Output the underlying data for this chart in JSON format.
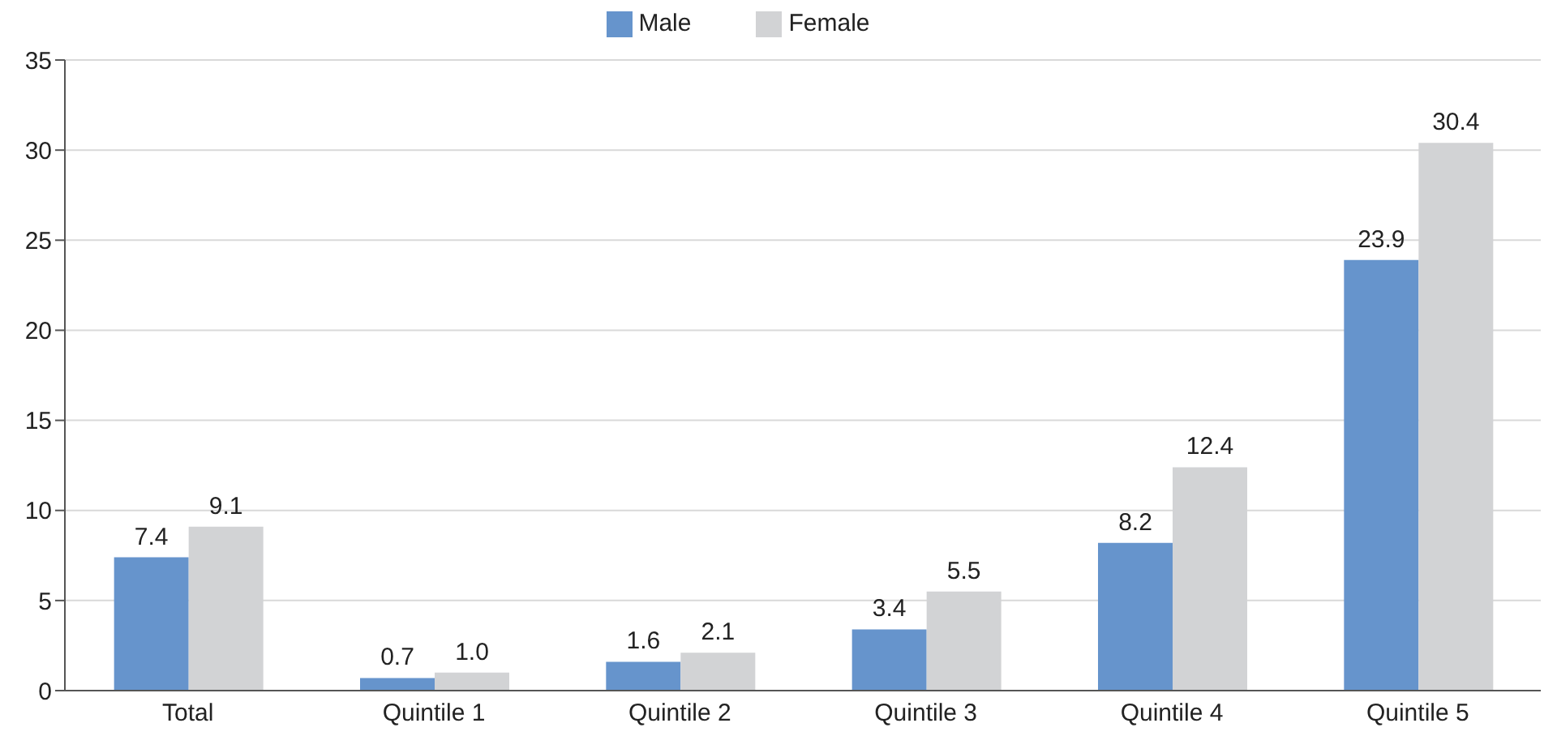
{
  "chart_data": {
    "type": "bar",
    "categories": [
      "Total",
      "Quintile 1",
      "Quintile 2",
      "Quintile 3",
      "Quintile 4",
      "Quintile 5"
    ],
    "series": [
      {
        "name": "Male",
        "color": "#6694cc",
        "values": [
          7.4,
          0.7,
          1.6,
          3.4,
          8.2,
          23.9
        ],
        "value_labels": [
          "7.4",
          "0.7",
          "1.6",
          "3.4",
          "8.2",
          "23.9"
        ]
      },
      {
        "name": "Female",
        "color": "#d2d3d5",
        "values": [
          9.1,
          1.0,
          2.1,
          5.5,
          12.4,
          30.4
        ],
        "value_labels": [
          "9.1",
          "1.0",
          "2.1",
          "5.5",
          "12.4",
          "30.4"
        ]
      }
    ],
    "ylim": [
      0,
      35
    ],
    "yticks": [
      0,
      5,
      10,
      15,
      20,
      25,
      30,
      35
    ],
    "grid": "y",
    "legend": "top"
  }
}
